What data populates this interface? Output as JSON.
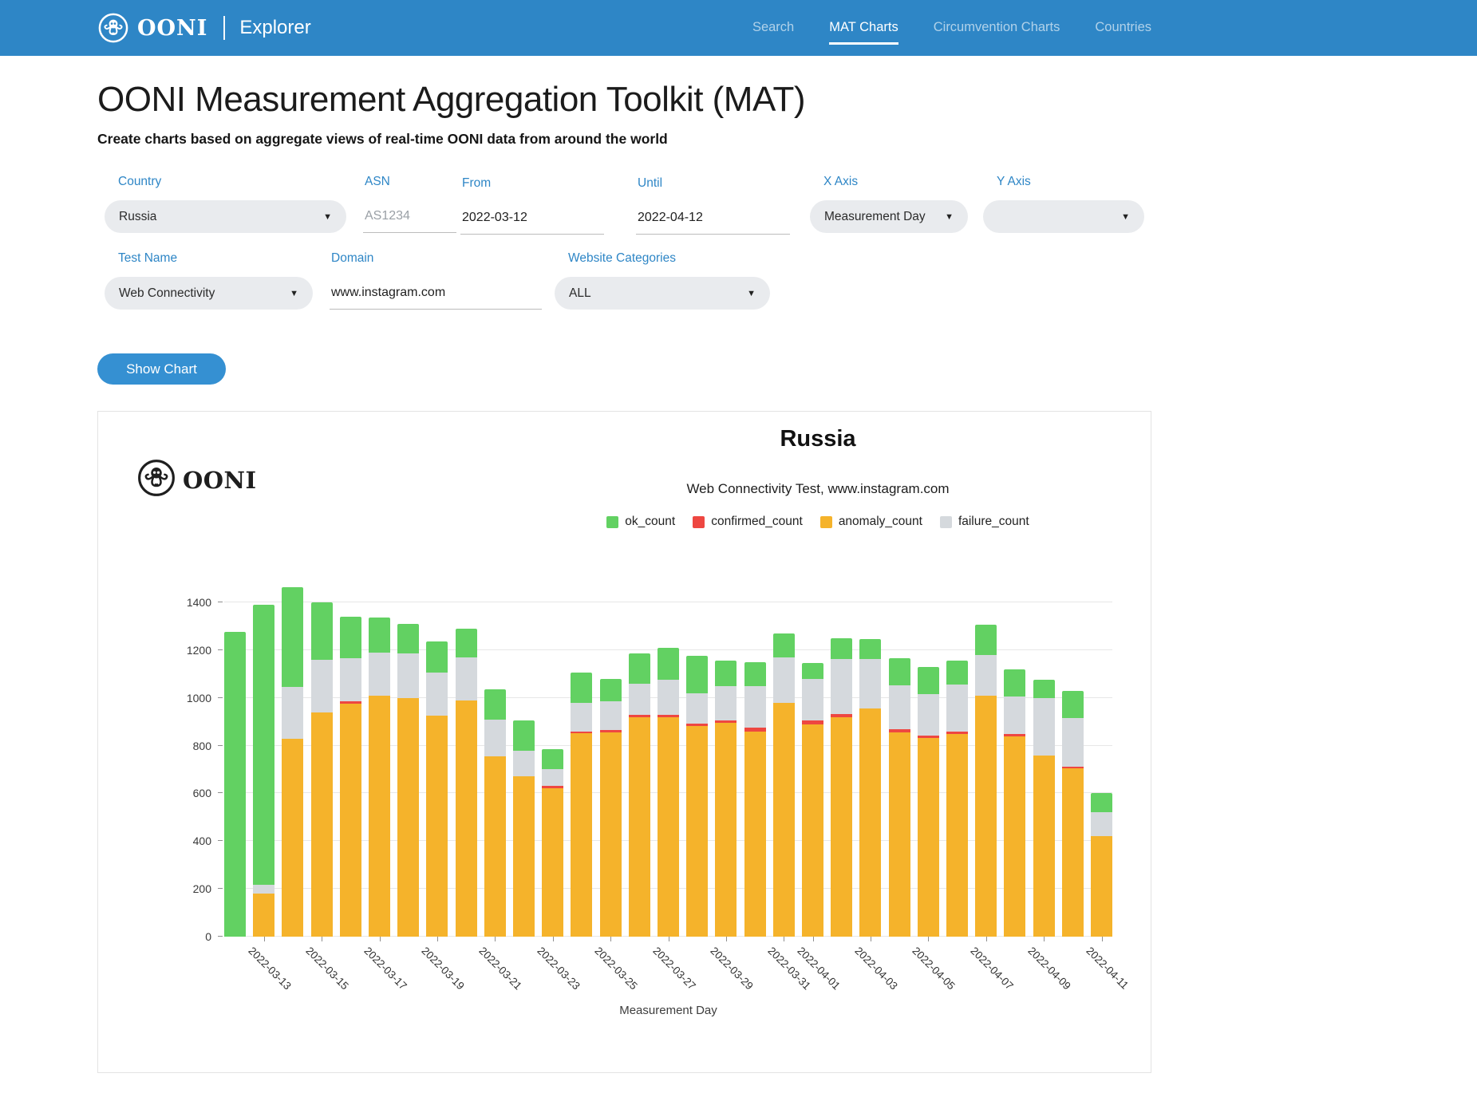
{
  "header": {
    "brand": {
      "name": "OONI",
      "product": "Explorer"
    },
    "nav": [
      {
        "label": "Search",
        "active": false
      },
      {
        "label": "MAT Charts",
        "active": true
      },
      {
        "label": "Circumvention Charts",
        "active": false
      },
      {
        "label": "Countries",
        "active": false
      }
    ]
  },
  "page": {
    "title": "OONI Measurement Aggregation Toolkit (MAT)",
    "subtitle": "Create charts based on aggregate views of real-time OONI data from around the world"
  },
  "form": {
    "country": {
      "label": "Country",
      "value": "Russia"
    },
    "asn": {
      "label": "ASN",
      "placeholder": "AS1234"
    },
    "from": {
      "label": "From",
      "value": "2022-03-12"
    },
    "until": {
      "label": "Until",
      "value": "2022-04-12"
    },
    "x_axis": {
      "label": "X Axis",
      "value": "Measurement Day"
    },
    "y_axis": {
      "label": "Y Axis",
      "value": ""
    },
    "test_name": {
      "label": "Test Name",
      "value": "Web Connectivity"
    },
    "domain": {
      "label": "Domain",
      "value": "www.instagram.com"
    },
    "website_categories": {
      "label": "Website Categories",
      "value": "ALL"
    },
    "submit_label": "Show Chart"
  },
  "chart": {
    "watermark": "OONI",
    "legend": [
      {
        "label": "ok_count",
        "color": "#62d162"
      },
      {
        "label": "confirmed_count",
        "color": "#ee4741"
      },
      {
        "label": "anomaly_count",
        "color": "#f5b32b"
      },
      {
        "label": "failure_count",
        "color": "#d5d9dd"
      }
    ]
  },
  "chart_data": {
    "type": "bar",
    "stacked": true,
    "title": "Russia",
    "subtitle": "Web Connectivity Test, www.instagram.com",
    "xlabel": "Measurement Day",
    "ylim": [
      0,
      1500
    ],
    "yticks": [
      0,
      200,
      400,
      600,
      800,
      1000,
      1200,
      1400
    ],
    "grid": "horizontal",
    "legend_position": "top",
    "categories": [
      "2022-03-12",
      "2022-03-13",
      "2022-03-14",
      "2022-03-15",
      "2022-03-16",
      "2022-03-17",
      "2022-03-18",
      "2022-03-19",
      "2022-03-20",
      "2022-03-21",
      "2022-03-22",
      "2022-03-23",
      "2022-03-24",
      "2022-03-25",
      "2022-03-26",
      "2022-03-27",
      "2022-03-28",
      "2022-03-29",
      "2022-03-30",
      "2022-03-31",
      "2022-04-01",
      "2022-04-02",
      "2022-04-03",
      "2022-04-04",
      "2022-04-05",
      "2022-04-06",
      "2022-04-07",
      "2022-04-08",
      "2022-04-09",
      "2022-04-10",
      "2022-04-11"
    ],
    "tick_labels": [
      "2022-03-13",
      "2022-03-15",
      "2022-03-17",
      "2022-03-19",
      "2022-03-21",
      "2022-03-23",
      "2022-03-25",
      "2022-03-27",
      "2022-03-29",
      "2022-03-31",
      "2022-04-01",
      "2022-04-03",
      "2022-04-05",
      "2022-04-07",
      "2022-04-09",
      "2022-04-11"
    ],
    "series": [
      {
        "name": "anomaly_count",
        "color": "#f5b32b",
        "values": [
          0,
          180,
          830,
          940,
          975,
          1010,
          1000,
          925,
          990,
          755,
          670,
          622,
          852,
          855,
          918,
          920,
          883,
          895,
          860,
          978,
          890,
          920,
          955,
          855,
          833,
          850,
          1010,
          840,
          760,
          705,
          420
        ]
      },
      {
        "name": "confirmed_count",
        "color": "#ee4741",
        "values": [
          0,
          0,
          0,
          0,
          10,
          0,
          0,
          0,
          0,
          0,
          0,
          8,
          8,
          10,
          10,
          8,
          9,
          10,
          14,
          0,
          15,
          12,
          0,
          14,
          9,
          10,
          0,
          10,
          0,
          8,
          0
        ]
      },
      {
        "name": "failure_count",
        "color": "#d5d9dd",
        "values": [
          0,
          38,
          215,
          220,
          180,
          180,
          185,
          180,
          180,
          155,
          110,
          73,
          120,
          120,
          130,
          147,
          128,
          145,
          176,
          193,
          175,
          230,
          208,
          182,
          175,
          195,
          170,
          155,
          240,
          202,
          100
        ]
      },
      {
        "name": "ok_count",
        "color": "#62d162",
        "values": [
          1275,
          1172,
          420,
          240,
          175,
          145,
          125,
          130,
          120,
          125,
          125,
          82,
          125,
          95,
          127,
          135,
          155,
          105,
          100,
          99,
          65,
          88,
          82,
          114,
          113,
          100,
          125,
          115,
          75,
          115,
          80
        ]
      }
    ]
  }
}
